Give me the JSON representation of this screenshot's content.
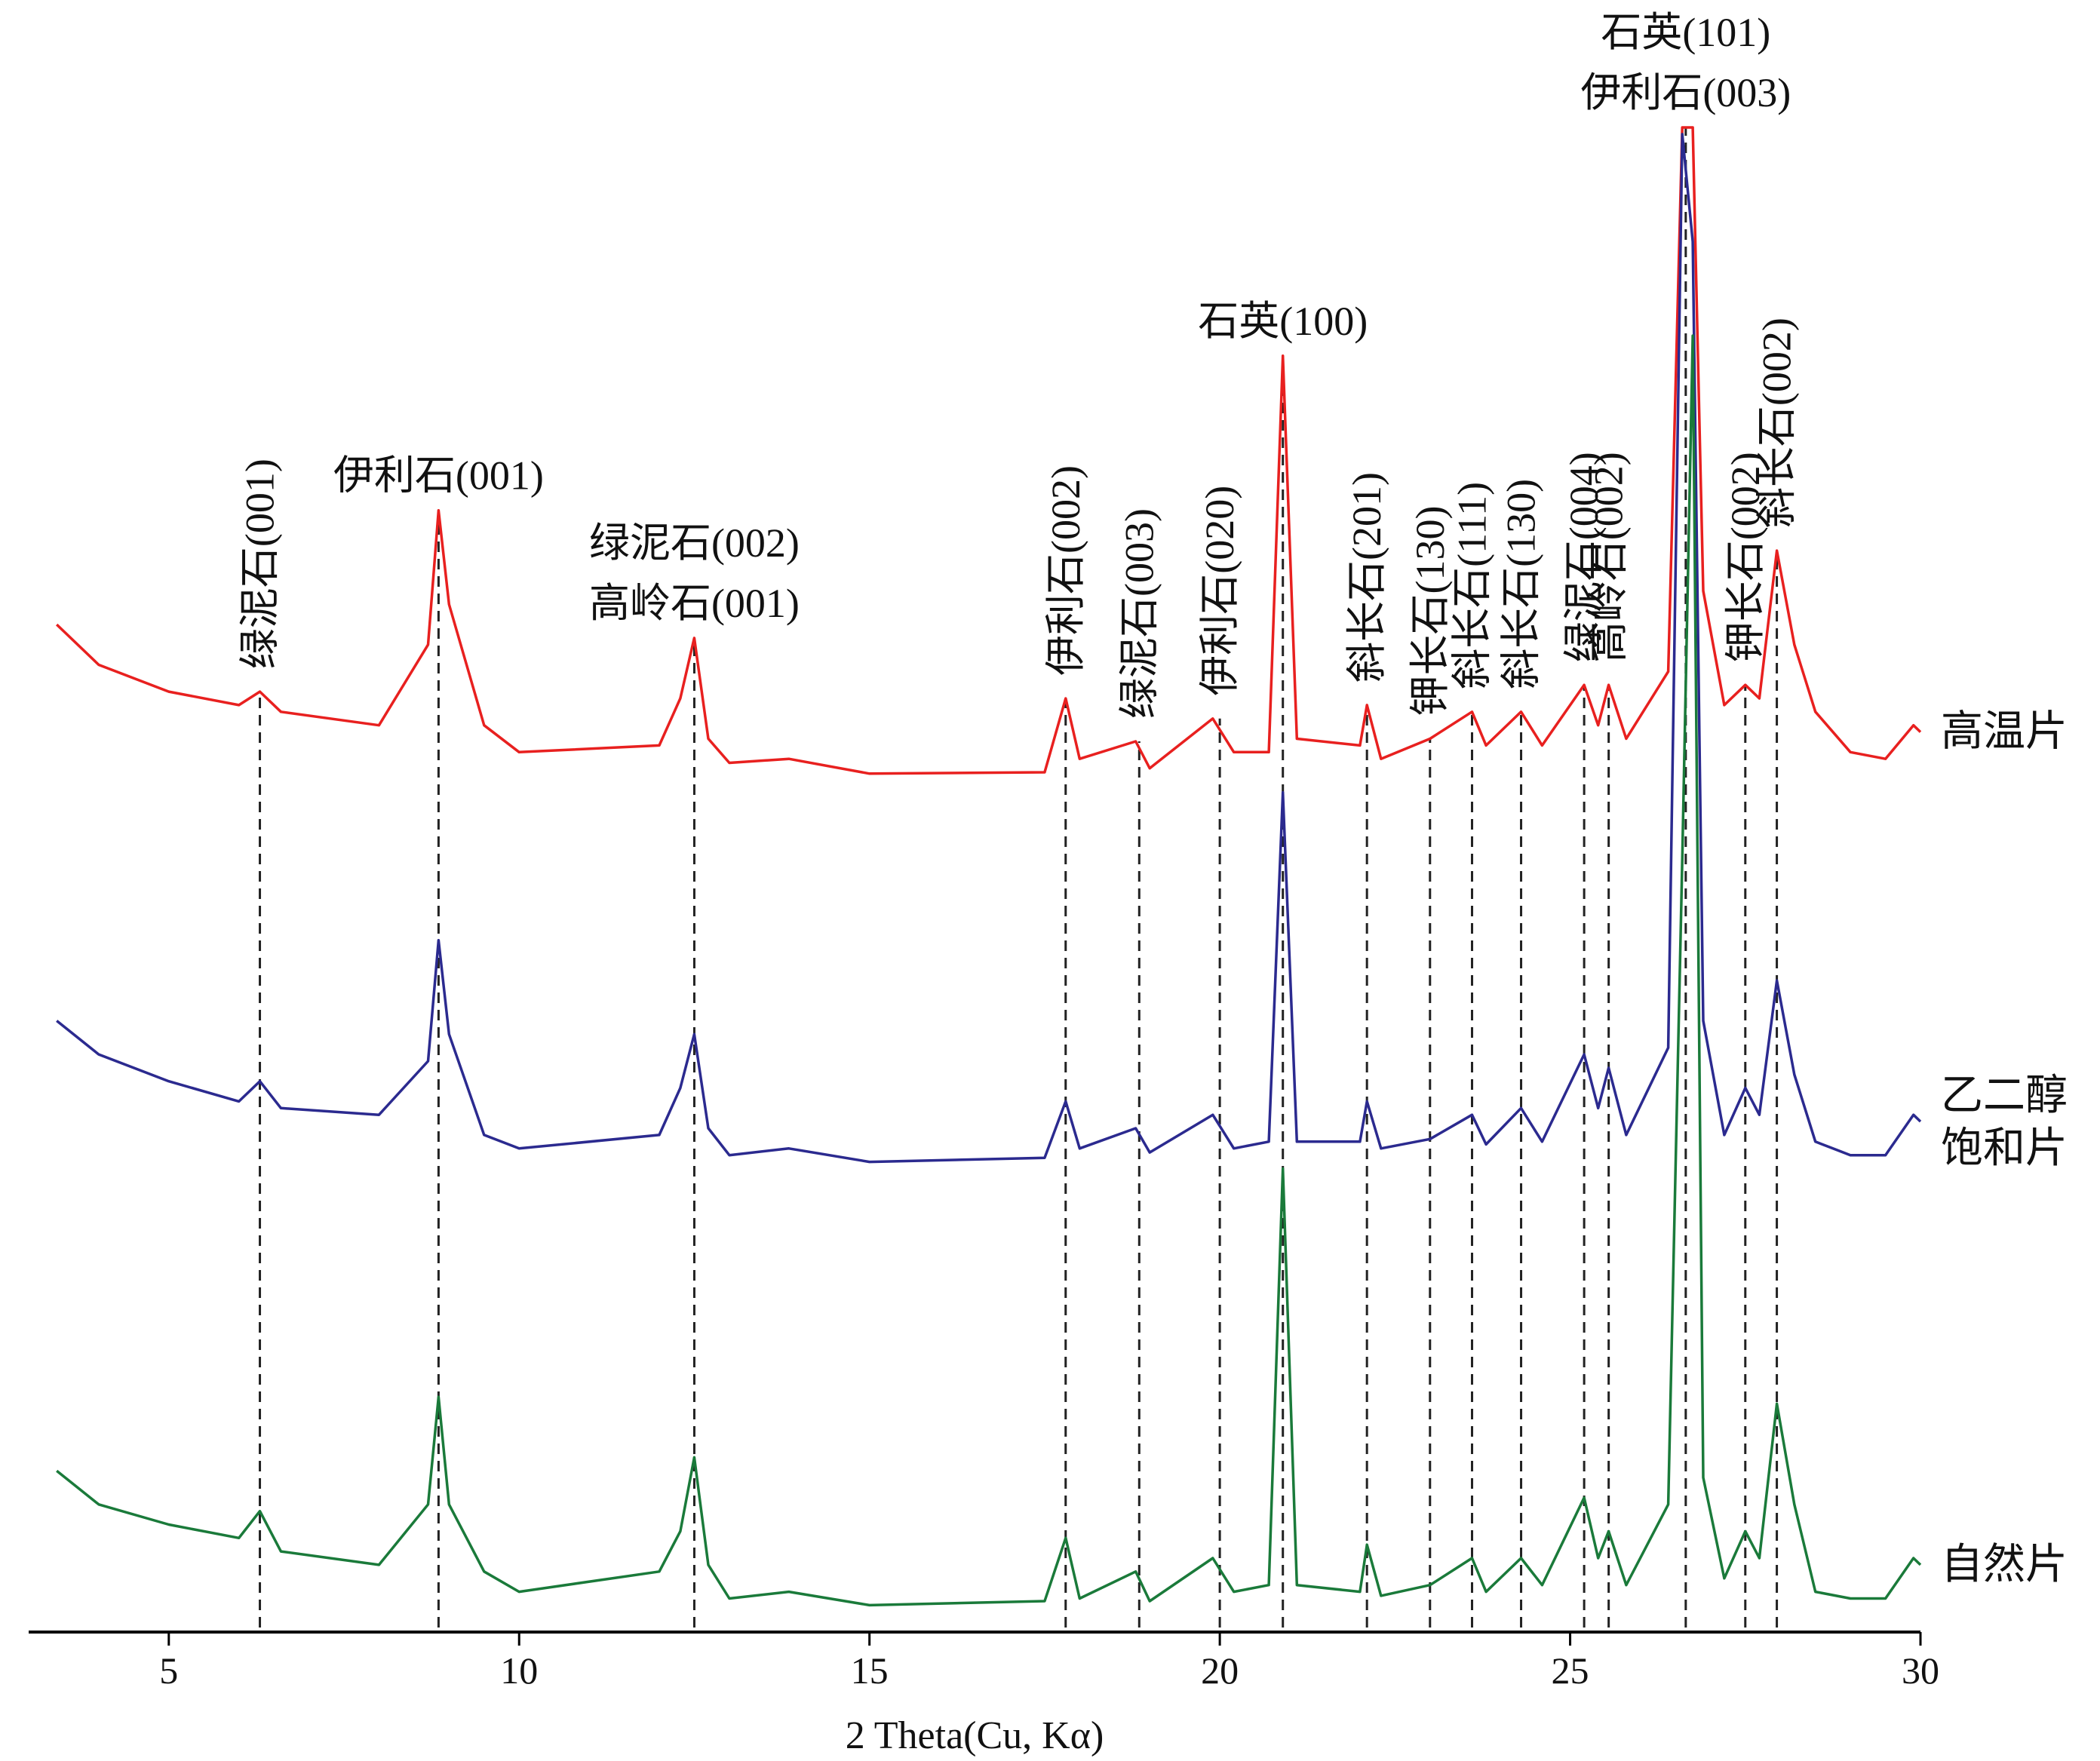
{
  "chart_data": {
    "type": "line",
    "xlabel": "2 Theta(Cu, Kα)",
    "xlim": [
      3,
      30
    ],
    "xticks": [
      5,
      10,
      15,
      20,
      25,
      30
    ],
    "ylim": [
      0,
      1120
    ],
    "x": [
      3.4,
      4,
      5,
      6,
      6.3,
      6.6,
      8,
      8.7,
      8.85,
      9,
      9.5,
      10,
      12,
      12.3,
      12.5,
      12.7,
      13,
      13.85,
      15,
      17.5,
      17.8,
      18,
      18.8,
      19,
      19.9,
      20.2,
      20.7,
      20.9,
      21.1,
      22,
      22.1,
      22.3,
      23,
      23.6,
      23.8,
      24.3,
      24.6,
      25.2,
      25.4,
      25.55,
      25.8,
      26.4,
      26.6,
      26.75,
      26.9,
      27.2,
      27.5,
      27.7,
      27.95,
      28.2,
      28.5,
      29,
      29.5,
      29.9,
      30
    ],
    "series": [
      {
        "name": "高温片",
        "color": "#e8201f",
        "values": [
          750,
          720,
          700,
          690,
          700,
          685,
          675,
          735,
          835,
          765,
          675,
          655,
          660,
          695,
          740,
          665,
          647,
          650,
          639,
          640,
          695,
          650,
          663,
          643,
          680,
          655,
          655,
          950,
          665,
          660,
          690,
          650,
          665,
          685,
          660,
          685,
          660,
          705,
          675,
          705,
          665,
          715,
          1120,
          1120,
          775,
          690,
          705,
          695,
          805,
          735,
          685,
          655,
          650,
          675,
          670
        ]
      },
      {
        "name": "乙二醇\n饱和片",
        "color": "#2b2a8f",
        "values": [
          455,
          430,
          410,
          395,
          410,
          390,
          385,
          425,
          515,
          445,
          370,
          360,
          370,
          405,
          445,
          375,
          355,
          360,
          350,
          353,
          395,
          360,
          375,
          357,
          385,
          360,
          365,
          625,
          365,
          365,
          395,
          360,
          367,
          385,
          363,
          390,
          365,
          430,
          390,
          420,
          370,
          435,
          1115,
          1035,
          455,
          370,
          405,
          385,
          485,
          415,
          365,
          355,
          355,
          385,
          380
        ]
      },
      {
        "name": "自然片",
        "color": "#1a7a3a",
        "values": [
          120,
          95,
          80,
          70,
          90,
          60,
          50,
          95,
          175,
          95,
          45,
          30,
          45,
          75,
          130,
          50,
          25,
          30,
          20,
          23,
          70,
          25,
          45,
          23,
          55,
          30,
          35,
          345,
          35,
          30,
          65,
          27,
          35,
          55,
          30,
          55,
          35,
          100,
          55,
          75,
          35,
          95,
          575,
          965,
          115,
          40,
          75,
          55,
          170,
          95,
          30,
          25,
          25,
          55,
          50
        ]
      }
    ],
    "annotations": [
      {
        "x": 6.3,
        "text": [
          "绿泥石(001)"
        ],
        "orientation": "vertical"
      },
      {
        "x": 8.85,
        "text": [
          "伊利石(001)"
        ],
        "orientation": "horizontal"
      },
      {
        "x": 12.5,
        "text": [
          "绿泥石(002)",
          "高岭石(001)"
        ],
        "orientation": "horizontal"
      },
      {
        "x": 17.8,
        "text": [
          "伊利石(002)"
        ],
        "orientation": "vertical"
      },
      {
        "x": 18.85,
        "text": [
          "绿泥石(003)"
        ],
        "orientation": "vertical"
      },
      {
        "x": 20.0,
        "text": [
          "伊利石(020)"
        ],
        "orientation": "vertical"
      },
      {
        "x": 20.9,
        "text": [
          "石英(100)"
        ],
        "orientation": "horizontal"
      },
      {
        "x": 22.1,
        "text": [
          "斜长石(201)"
        ],
        "orientation": "vertical"
      },
      {
        "x": 23.0,
        "text": [
          "钾长石(130)"
        ],
        "orientation": "vertical"
      },
      {
        "x": 23.6,
        "text": [
          "斜长石(111)"
        ],
        "orientation": "vertical"
      },
      {
        "x": 24.3,
        "text": [
          "斜长石(130)"
        ],
        "orientation": "vertical"
      },
      {
        "x": 25.2,
        "text": [
          "绿泥石(004)"
        ],
        "orientation": "vertical"
      },
      {
        "x": 25.55,
        "text": [
          "高岭石(002)"
        ],
        "orientation": "vertical"
      },
      {
        "x": 26.65,
        "text": [
          "石英(101)",
          "伊利石(003)"
        ],
        "orientation": "horizontal"
      },
      {
        "x": 27.5,
        "text": [
          "钾长石(002)"
        ],
        "orientation": "vertical"
      },
      {
        "x": 27.95,
        "text": [
          "斜长石(002)"
        ],
        "orientation": "vertical"
      }
    ]
  }
}
